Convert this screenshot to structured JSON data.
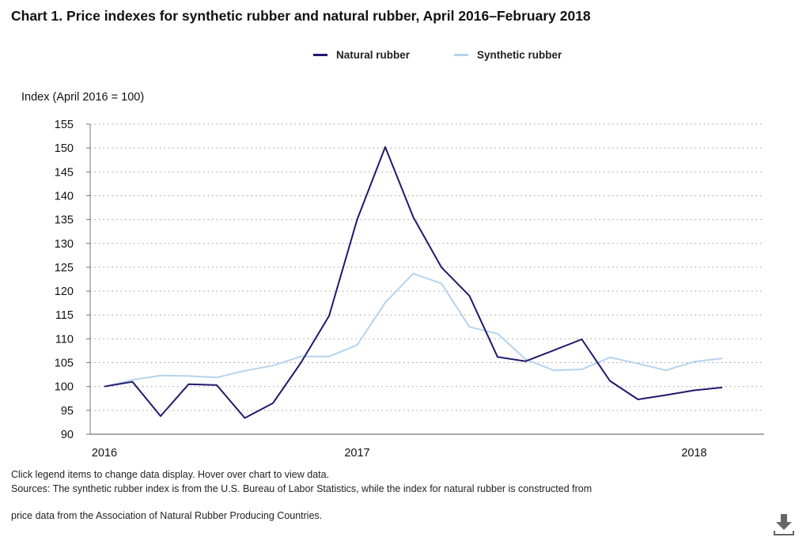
{
  "page": {
    "title": "Chart 1. Price indexes for synthetic rubber and natural rubber, April 2016–February 2018",
    "note": "Click legend items to change data display. Hover over chart to view data.",
    "source_line1": "Sources: The synthetic rubber index is from the U.S. Bureau of Labor Statistics, while the index for natural rubber is constructed from",
    "source_line2": "price data from the Association of Natural Rubber Producing Countries.",
    "download_icon": "download-icon"
  },
  "chart_data": {
    "type": "line",
    "title": "Chart 1. Price indexes for synthetic rubber and natural rubber, April 2016–February 2018",
    "ylabel": "Index (April 2016 = 100)",
    "xlabel": "",
    "ylim": [
      90,
      155
    ],
    "yticks": [
      90,
      95,
      100,
      105,
      110,
      115,
      120,
      125,
      130,
      135,
      140,
      145,
      150,
      155
    ],
    "x": [
      "2016-04",
      "2016-05",
      "2016-06",
      "2016-07",
      "2016-08",
      "2016-09",
      "2016-10",
      "2016-11",
      "2016-12",
      "2017-01",
      "2017-02",
      "2017-03",
      "2017-04",
      "2017-05",
      "2017-06",
      "2017-07",
      "2017-08",
      "2017-09",
      "2017-10",
      "2017-11",
      "2017-12",
      "2018-01",
      "2018-02"
    ],
    "xticks": [
      {
        "x": "2016-04",
        "label": "2016"
      },
      {
        "x": "2017-01",
        "label": "2017"
      },
      {
        "x": "2018-01",
        "label": "2018"
      }
    ],
    "grid": "horizontal dotted",
    "legend": "top-center",
    "series": [
      {
        "name": "Natural rubber",
        "color": "#1f1a6b",
        "values": [
          100.0,
          101.0,
          93.8,
          100.5,
          100.3,
          93.4,
          96.5,
          105.0,
          114.8,
          135.0,
          150.2,
          135.5,
          125.0,
          119.0,
          106.2,
          105.3,
          107.6,
          109.9,
          101.2,
          97.3,
          98.2,
          99.2,
          99.8
        ]
      },
      {
        "name": "Synthetic rubber",
        "color": "#b5d3ee",
        "values": [
          100.0,
          101.4,
          102.3,
          102.2,
          101.9,
          103.3,
          104.4,
          106.3,
          106.3,
          108.7,
          117.6,
          123.7,
          121.6,
          112.5,
          111.1,
          105.7,
          103.4,
          103.6,
          106.1,
          104.8,
          103.4,
          105.2,
          105.9
        ]
      }
    ]
  }
}
